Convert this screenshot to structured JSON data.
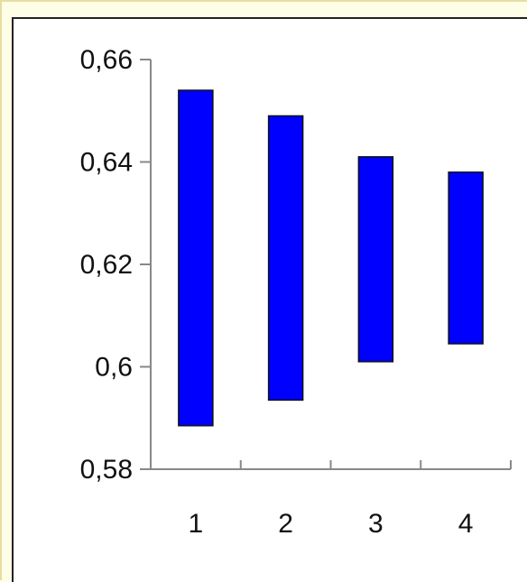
{
  "chart_data": {
    "type": "bar",
    "subtype": "floating-range",
    "categories": [
      "1",
      "2",
      "3",
      "4"
    ],
    "ranges": [
      {
        "low": 0.5885,
        "high": 0.654
      },
      {
        "low": 0.5935,
        "high": 0.649
      },
      {
        "low": 0.601,
        "high": 0.641
      },
      {
        "low": 0.6045,
        "high": 0.638
      }
    ],
    "ylim": [
      0.58,
      0.66
    ],
    "yticks": [
      0.58,
      0.6,
      0.62,
      0.64,
      0.66
    ],
    "ytick_labels": [
      "0,58",
      "0,6",
      "0,62",
      "0,64",
      "0,66"
    ],
    "xtick_labels": [
      "1",
      "2",
      "3",
      "4"
    ],
    "title": "",
    "xlabel": "",
    "ylabel": "",
    "grid": false,
    "legend": "none",
    "colors": {
      "bar_fill": "#0000ff",
      "bar_stroke": "#111111",
      "axis": "#888888",
      "background": "#fefee6",
      "panel": "#ffffff"
    }
  }
}
